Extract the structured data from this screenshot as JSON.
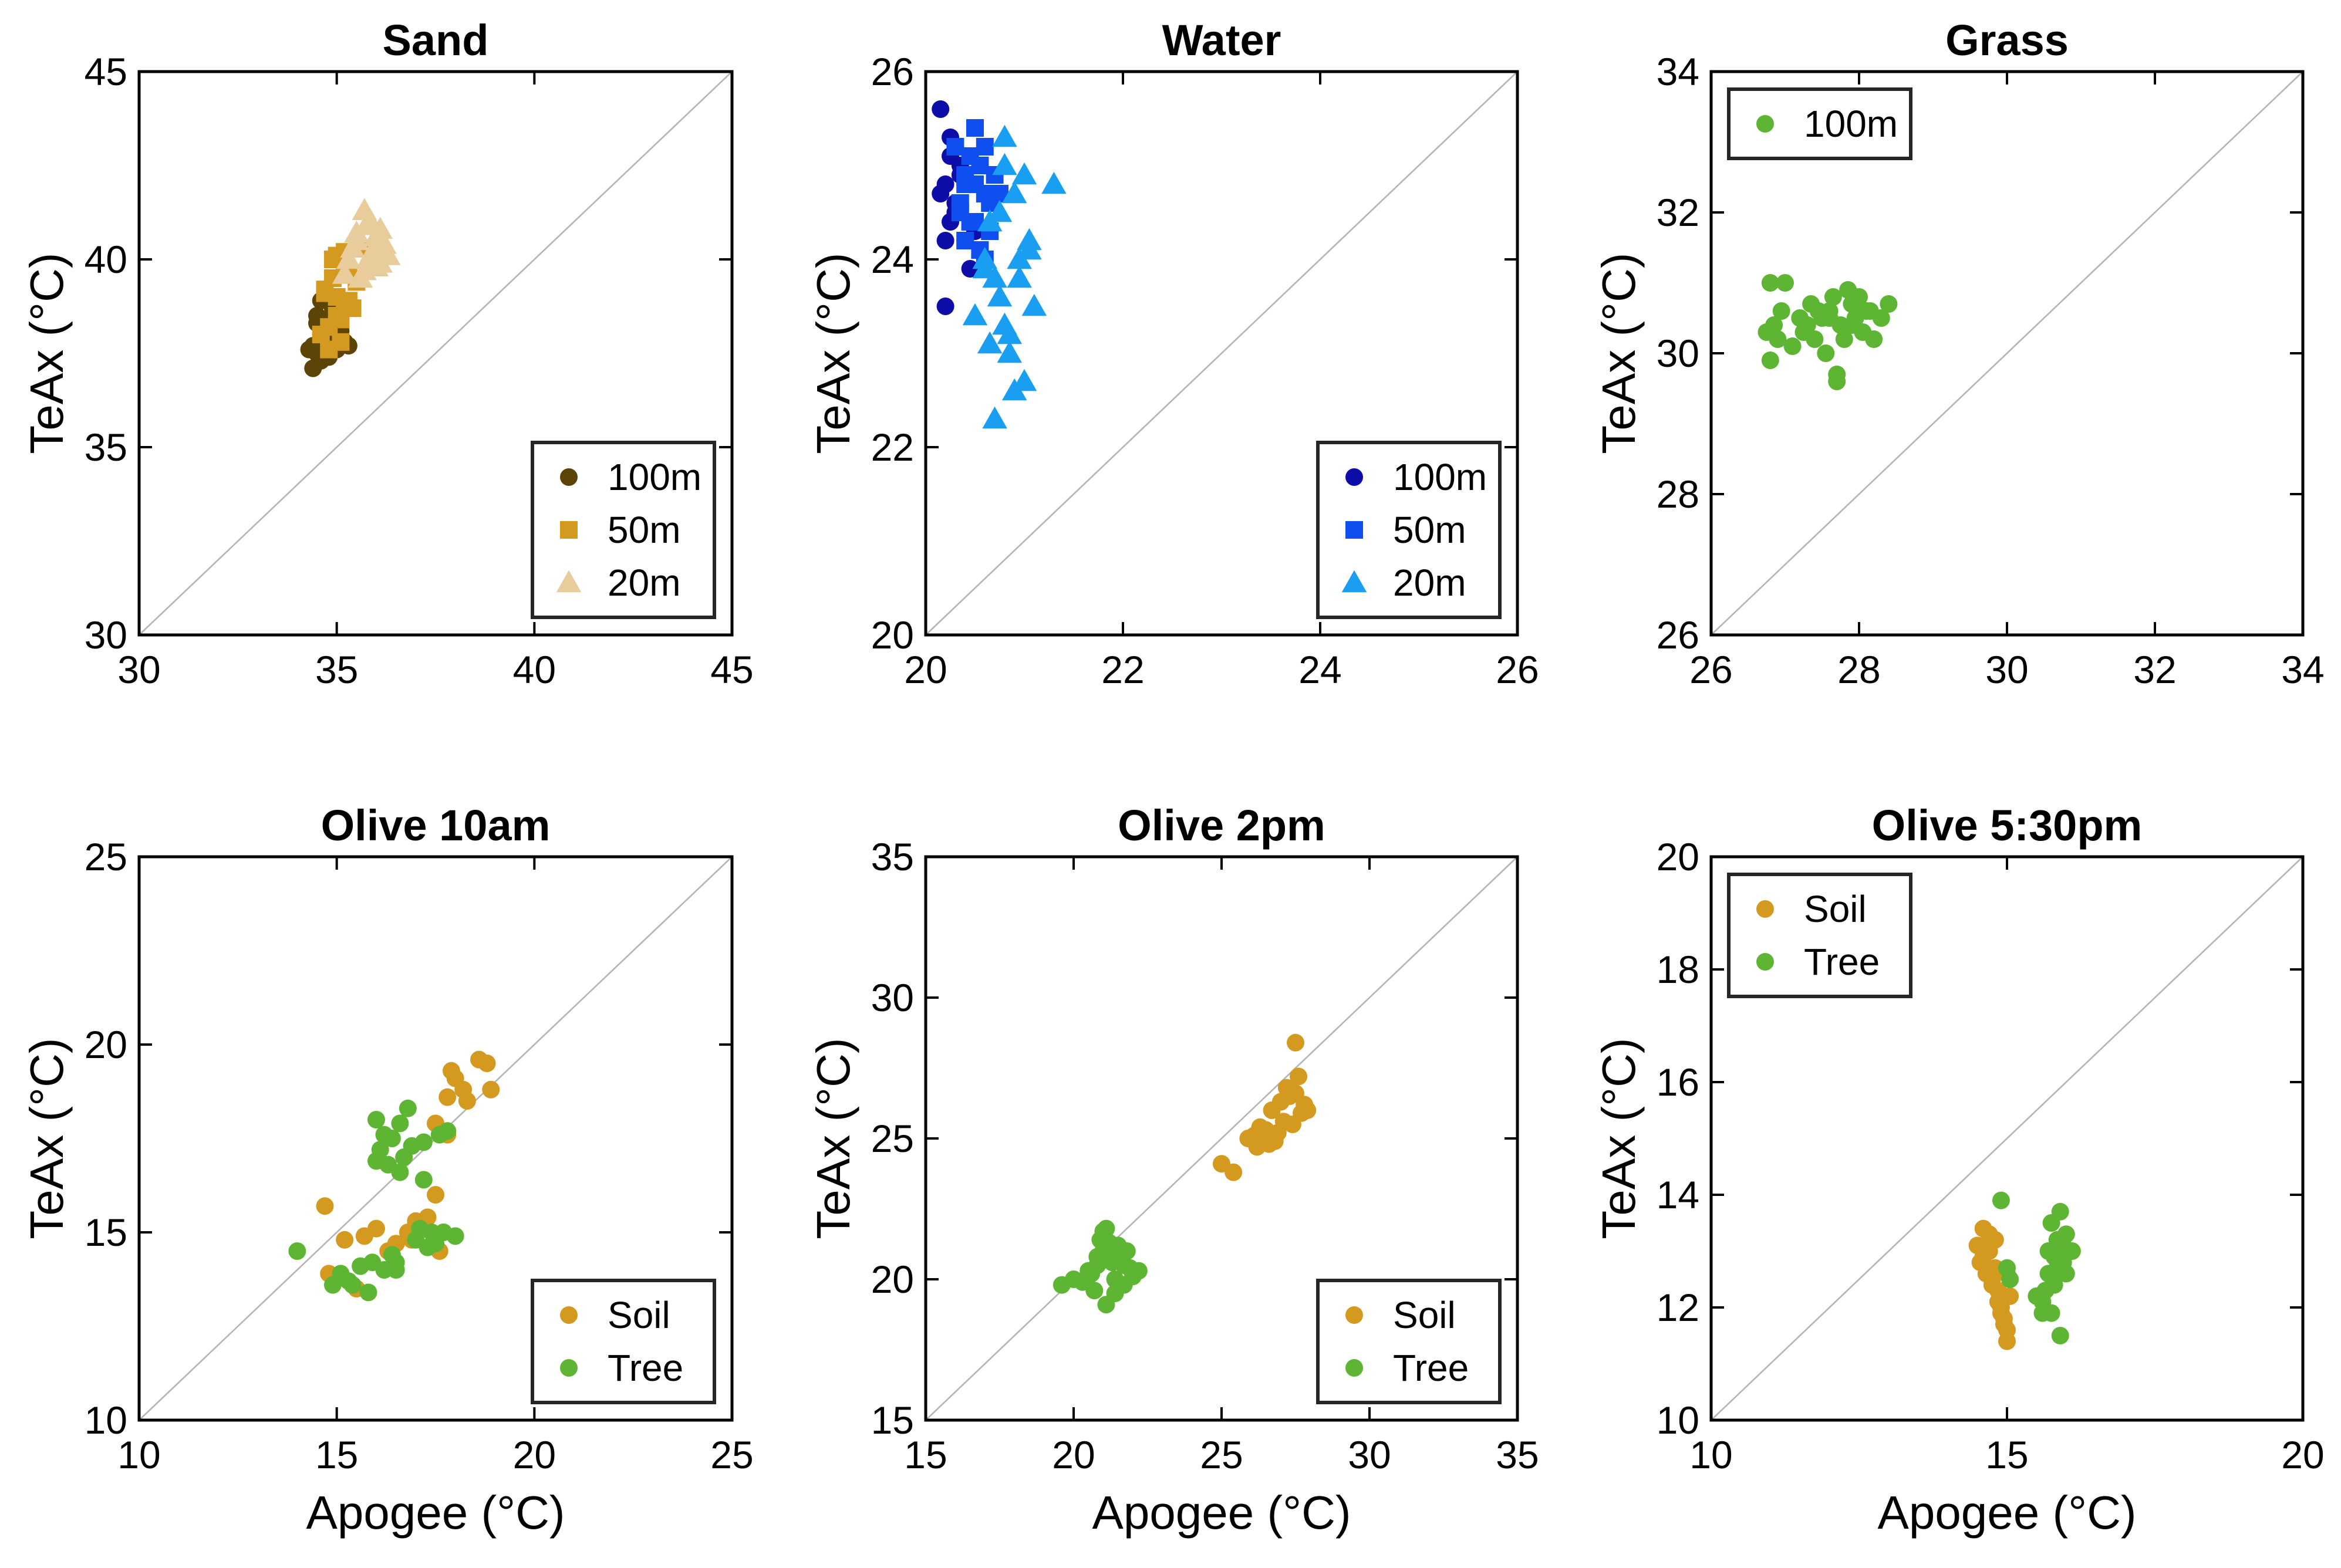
{
  "colors": {
    "brown": "#5c4306",
    "gold": "#d49a1f",
    "beige": "#e8cc9c",
    "navy": "#0d0da8",
    "blue": "#0f4ff0",
    "sky": "#1a9ef2",
    "green": "#5eb534"
  },
  "chart_data": [
    {
      "type": "scatter",
      "title": "Sand",
      "xlabel": "",
      "ylabel": "TeAx (°C)",
      "xlim": [
        30,
        45
      ],
      "ylim": [
        30,
        45
      ],
      "xticks": [
        30,
        35,
        40,
        45
      ],
      "yticks": [
        30,
        35,
        40,
        45
      ],
      "legend_position": "bottom-right",
      "series": [
        {
          "name": "100m",
          "marker": "circle",
          "color_key": "brown",
          "x": [
            34.3,
            34.4,
            34.5,
            34.5,
            34.6,
            34.7,
            34.8,
            34.9,
            35.0,
            35.1,
            34.4,
            34.6,
            34.8,
            35.2,
            34.5,
            34.9,
            35.0,
            34.7,
            35.3,
            34.6
          ],
          "y": [
            37.6,
            37.1,
            37.5,
            38.5,
            38.0,
            37.9,
            38.2,
            38.7,
            37.8,
            38.1,
            37.7,
            38.9,
            37.4,
            37.8,
            38.3,
            38.6,
            37.6,
            38.4,
            37.7,
            37.3
          ]
        },
        {
          "name": "50m",
          "marker": "square",
          "color_key": "gold",
          "x": [
            34.6,
            34.7,
            34.8,
            34.9,
            35.0,
            35.1,
            35.2,
            35.3,
            35.4,
            34.8,
            35.0,
            35.2,
            35.5,
            34.9,
            35.1,
            35.3,
            35.6,
            35.0,
            34.7,
            35.2
          ],
          "y": [
            38.0,
            39.2,
            37.6,
            39.5,
            40.1,
            38.4,
            39.8,
            38.9,
            38.7,
            38.2,
            39.0,
            40.2,
            39.4,
            40.0,
            37.8,
            39.6,
            40.3,
            38.5,
            39.1,
            38.8
          ]
        },
        {
          "name": "20m",
          "marker": "triangle",
          "color_key": "beige",
          "x": [
            35.2,
            35.4,
            35.5,
            35.7,
            35.8,
            36.0,
            36.1,
            36.2,
            35.6,
            35.9,
            36.3,
            35.3,
            35.8,
            36.0,
            35.5,
            36.1,
            35.7,
            35.9
          ],
          "y": [
            39.6,
            40.3,
            40.7,
            41.3,
            40.0,
            40.6,
            39.9,
            40.4,
            39.5,
            40.9,
            40.1,
            40.0,
            41.0,
            39.8,
            40.5,
            40.8,
            39.7,
            40.2
          ]
        }
      ]
    },
    {
      "type": "scatter",
      "title": "Water",
      "xlabel": "",
      "ylabel": "TeAx (°C)",
      "xlim": [
        20,
        26
      ],
      "ylim": [
        20,
        26
      ],
      "xticks": [
        20,
        22,
        24,
        26
      ],
      "yticks": [
        20,
        22,
        24,
        26
      ],
      "legend_position": "bottom-right",
      "series": [
        {
          "name": "100m",
          "marker": "circle",
          "color_key": "navy",
          "x": [
            20.15,
            20.2,
            20.25,
            20.3,
            20.35,
            20.2,
            20.4,
            20.15,
            20.25,
            20.35,
            20.45,
            20.3,
            20.2,
            20.4,
            20.25,
            20.5
          ],
          "y": [
            25.6,
            24.8,
            25.1,
            24.5,
            24.9,
            23.5,
            24.2,
            24.7,
            24.4,
            25.0,
            23.9,
            24.6,
            24.2,
            24.8,
            25.3,
            24.3
          ]
        },
        {
          "name": "50m",
          "marker": "square",
          "color_key": "blue",
          "x": [
            20.3,
            20.35,
            20.4,
            20.45,
            20.5,
            20.55,
            20.6,
            20.65,
            20.7,
            20.4,
            20.5,
            20.6,
            20.35,
            20.55,
            20.45,
            20.65,
            20.5,
            20.6,
            20.75,
            20.4
          ],
          "y": [
            25.2,
            24.6,
            24.9,
            24.4,
            25.4,
            25.0,
            24.7,
            24.3,
            24.9,
            24.2,
            24.8,
            25.2,
            24.5,
            24.1,
            25.1,
            24.6,
            24.4,
            24.0,
            24.7,
            24.8
          ]
        },
        {
          "name": "20m",
          "marker": "triangle",
          "color_key": "sky",
          "x": [
            20.5,
            20.6,
            20.65,
            20.7,
            20.75,
            20.8,
            20.85,
            20.9,
            20.95,
            21.0,
            21.05,
            21.1,
            21.3,
            20.7,
            20.8,
            20.9,
            21.0,
            20.6,
            20.75,
            20.85,
            20.95,
            21.05,
            20.65,
            20.8
          ],
          "y": [
            23.4,
            24.0,
            23.1,
            22.3,
            24.5,
            25.3,
            23.2,
            22.6,
            24.0,
            22.7,
            24.2,
            23.5,
            24.8,
            23.8,
            25.0,
            24.7,
            24.9,
            23.9,
            23.6,
            23.0,
            23.8,
            24.1,
            24.4,
            23.3
          ]
        }
      ]
    },
    {
      "type": "scatter",
      "title": "Grass",
      "xlabel": "",
      "ylabel": "TeAx (°C)",
      "xlim": [
        26,
        34
      ],
      "ylim": [
        26,
        34
      ],
      "xticks": [
        26,
        28,
        30,
        32,
        34
      ],
      "yticks": [
        26,
        28,
        30,
        32,
        34
      ],
      "legend_position": "top-left",
      "series": [
        {
          "name": "100m",
          "marker": "circle",
          "color_key": "green",
          "x": [
            26.75,
            26.8,
            26.85,
            26.95,
            27.0,
            27.1,
            27.2,
            27.3,
            27.35,
            27.4,
            27.5,
            27.55,
            27.6,
            27.65,
            27.7,
            27.75,
            27.8,
            27.85,
            27.9,
            27.95,
            28.0,
            28.05,
            28.1,
            28.2,
            28.3,
            28.4,
            26.9,
            27.25,
            27.45,
            27.7,
            27.9,
            28.15,
            26.8,
            27.6
          ],
          "y": [
            30.3,
            31.0,
            30.4,
            30.6,
            31.0,
            30.1,
            30.5,
            30.4,
            30.7,
            30.2,
            30.5,
            30.0,
            30.6,
            30.8,
            29.6,
            30.4,
            30.2,
            30.9,
            30.7,
            30.5,
            30.8,
            30.3,
            30.6,
            30.2,
            30.5,
            30.7,
            30.2,
            30.3,
            30.6,
            29.7,
            30.4,
            30.6,
            29.9,
            30.5
          ]
        }
      ]
    },
    {
      "type": "scatter",
      "title": "Olive 10am",
      "xlabel": "Apogee (°C)",
      "ylabel": "TeAx (°C)",
      "xlim": [
        10,
        25
      ],
      "ylim": [
        10,
        25
      ],
      "xticks": [
        10,
        15,
        20,
        25
      ],
      "yticks": [
        10,
        15,
        20,
        25
      ],
      "legend_position": "bottom-right",
      "series": [
        {
          "name": "Soil",
          "marker": "circle",
          "color_key": "gold",
          "x": [
            14.7,
            14.8,
            15.2,
            15.5,
            15.7,
            16.0,
            16.3,
            16.5,
            16.8,
            17.0,
            17.3,
            17.5,
            17.6,
            17.8,
            18.0,
            18.2,
            17.5,
            17.9,
            18.3,
            18.6,
            18.8,
            18.9,
            17.8,
            16.9,
            17.7,
            17.0
          ],
          "y": [
            15.7,
            13.9,
            14.8,
            13.5,
            14.9,
            15.1,
            14.5,
            14.7,
            15.0,
            15.2,
            15.4,
            16.0,
            14.5,
            18.6,
            19.1,
            18.8,
            17.9,
            19.3,
            18.5,
            19.6,
            19.5,
            18.8,
            17.6,
            14.8,
            15.0,
            15.3
          ]
        },
        {
          "name": "Tree",
          "marker": "circle",
          "color_key": "green",
          "x": [
            14.0,
            14.9,
            15.1,
            15.4,
            15.6,
            15.8,
            16.0,
            16.1,
            16.2,
            16.3,
            16.4,
            16.5,
            16.6,
            16.8,
            17.0,
            17.2,
            17.4,
            17.6,
            17.8,
            18.0,
            16.0,
            16.4,
            16.7,
            17.1,
            17.5,
            15.9,
            16.2,
            16.6,
            17.3,
            17.7,
            15.3,
            16.9,
            17.2,
            16.5
          ],
          "y": [
            14.5,
            13.6,
            13.9,
            13.6,
            14.1,
            13.4,
            18.0,
            17.2,
            14.0,
            16.8,
            17.5,
            14.2,
            17.9,
            18.3,
            14.8,
            17.4,
            15.0,
            17.6,
            17.7,
            14.9,
            16.9,
            14.4,
            17.0,
            15.1,
            14.7,
            14.2,
            17.6,
            16.6,
            14.6,
            15.0,
            13.7,
            17.3,
            16.4,
            14.0
          ]
        }
      ]
    },
    {
      "type": "scatter",
      "title": "Olive 2pm",
      "xlabel": "Apogee (°C)",
      "ylabel": "TeAx (°C)",
      "xlim": [
        15,
        35
      ],
      "ylim": [
        15,
        35
      ],
      "xticks": [
        15,
        20,
        25,
        30,
        35
      ],
      "yticks": [
        15,
        20,
        25,
        30,
        35
      ],
      "legend_position": "bottom-right",
      "series": [
        {
          "name": "Soil",
          "marker": "circle",
          "color_key": "gold",
          "x": [
            25.0,
            25.4,
            25.9,
            26.2,
            26.5,
            26.7,
            26.9,
            27.1,
            27.3,
            27.5,
            27.6,
            27.8,
            27.9,
            26.3,
            26.8,
            27.2,
            27.4,
            27.0,
            26.6,
            27.7,
            26.1,
            27.5
          ],
          "y": [
            24.1,
            23.8,
            25.0,
            24.7,
            25.3,
            26.0,
            25.2,
            25.6,
            26.5,
            28.4,
            27.2,
            26.2,
            26.0,
            25.4,
            24.9,
            26.8,
            25.5,
            26.3,
            24.8,
            25.9,
            25.1,
            26.6
          ]
        },
        {
          "name": "Tree",
          "marker": "circle",
          "color_key": "green",
          "x": [
            19.6,
            20.0,
            20.3,
            20.6,
            20.8,
            21.0,
            21.1,
            21.2,
            21.4,
            21.5,
            21.7,
            21.8,
            22.0,
            22.2,
            20.9,
            21.3,
            21.6,
            20.7,
            21.0,
            21.9,
            20.5,
            21.4,
            21.1,
            20.8,
            21.5,
            21.7
          ],
          "y": [
            19.8,
            20.0,
            19.9,
            20.2,
            20.5,
            21.7,
            19.1,
            21.3,
            20.0,
            20.8,
            19.8,
            21.0,
            20.1,
            20.3,
            21.4,
            20.6,
            20.9,
            19.6,
            21.0,
            20.4,
            20.3,
            19.5,
            21.8,
            20.8,
            21.2,
            20.5
          ]
        }
      ]
    },
    {
      "type": "scatter",
      "title": "Olive 5:30pm",
      "xlabel": "Apogee (°C)",
      "ylabel": "TeAx (°C)",
      "xlim": [
        10,
        20
      ],
      "ylim": [
        10,
        20
      ],
      "xticks": [
        10,
        15,
        20
      ],
      "yticks": [
        10,
        12,
        14,
        16,
        18,
        20
      ],
      "legend_position": "top-left",
      "series": [
        {
          "name": "Soil",
          "marker": "circle",
          "color_key": "gold",
          "x": [
            14.5,
            14.55,
            14.6,
            14.65,
            14.7,
            14.75,
            14.8,
            14.85,
            14.9,
            14.95,
            15.0,
            15.05,
            14.6,
            14.7,
            14.8,
            14.9,
            15.0,
            14.75,
            14.85,
            14.95,
            15.0,
            14.65
          ],
          "y": [
            13.1,
            12.8,
            13.4,
            12.6,
            13.0,
            12.5,
            13.2,
            12.3,
            12.0,
            11.7,
            11.4,
            12.2,
            12.9,
            13.3,
            12.7,
            11.9,
            11.6,
            12.4,
            12.1,
            11.8,
            12.6,
            13.0
          ]
        },
        {
          "name": "Tree",
          "marker": "circle",
          "color_key": "green",
          "x": [
            14.9,
            15.0,
            15.05,
            15.5,
            15.6,
            15.7,
            15.75,
            15.8,
            15.85,
            15.9,
            15.95,
            16.0,
            16.1,
            15.7,
            15.8,
            15.9,
            16.0,
            15.65,
            15.75,
            15.95,
            15.85,
            15.6
          ],
          "y": [
            13.9,
            12.7,
            12.5,
            12.2,
            11.9,
            12.6,
            13.5,
            12.9,
            13.2,
            11.5,
            12.8,
            13.3,
            13.0,
            13.0,
            12.4,
            13.7,
            12.6,
            12.3,
            11.9,
            13.1,
            12.7,
            12.1
          ]
        }
      ]
    }
  ]
}
